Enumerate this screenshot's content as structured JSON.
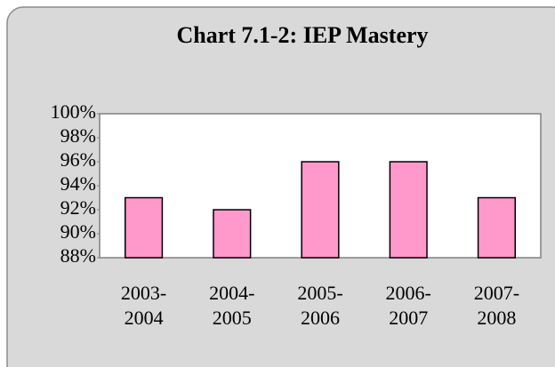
{
  "chart_data": {
    "type": "bar",
    "title": "Chart 7.1-2:  IEP Mastery",
    "categories": [
      "2003-\n2004",
      "2004-\n2005",
      "2005-\n2006",
      "2006-\n2007",
      "2007-\n2008"
    ],
    "values": [
      93,
      92,
      96,
      96,
      93
    ],
    "color": "#ff99cc",
    "ylim": [
      88,
      100
    ],
    "yticks": [
      {
        "value": 88,
        "label": "88%"
      },
      {
        "value": 90,
        "label": "90%"
      },
      {
        "value": 92,
        "label": "92%"
      },
      {
        "value": 94,
        "label": "94%"
      },
      {
        "value": 96,
        "label": "96%"
      },
      {
        "value": 98,
        "label": "98%"
      },
      {
        "value": 100,
        "label": "100%"
      }
    ],
    "grid": false
  }
}
